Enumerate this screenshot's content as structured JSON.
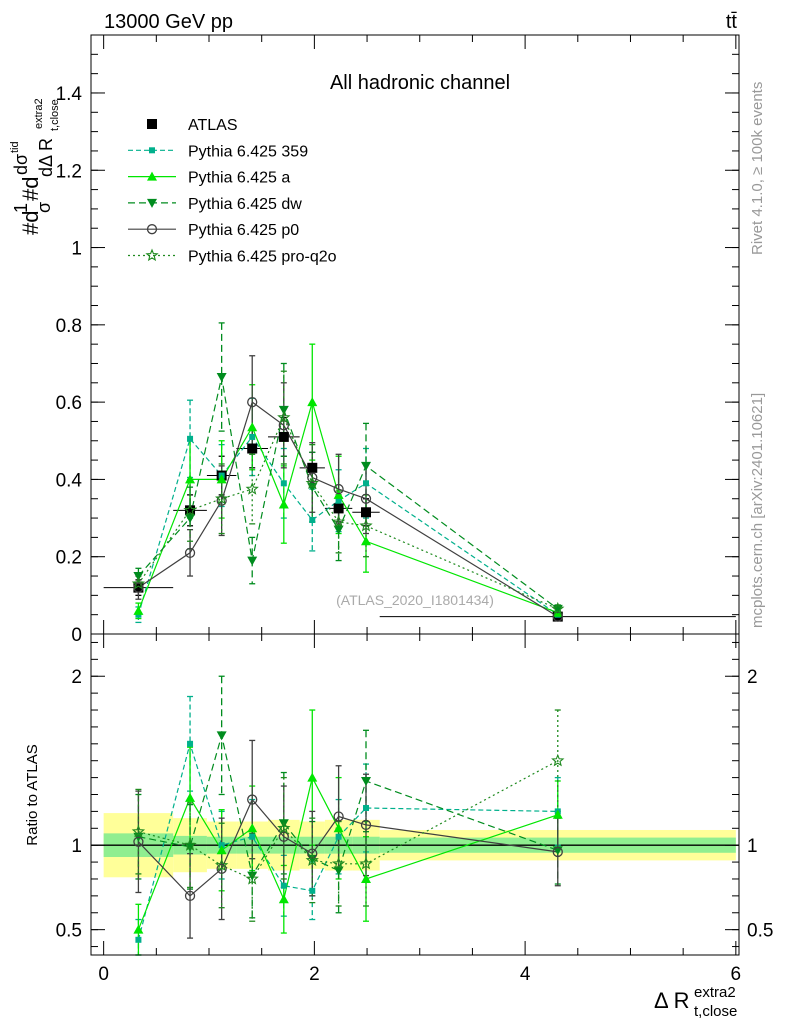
{
  "header": {
    "energy_label": "13000 GeV pp",
    "process_label": "tt̄",
    "side_label_top": "Rivet 4.1.0, ≥ 100k events",
    "side_label_bottom": "mcplots.cern.ch [arXiv:2401.10621]",
    "watermark": "(ATLAS_2020_I1801434)"
  },
  "chart_data": [
    {
      "type": "line",
      "title": "All hadronic channel",
      "ylabel": "#d1/σ#d dσ^{tid}/dΔ R_{t,close}^{extra2}",
      "ylabel_parts": {
        "frac": "#d",
        "one": "1",
        "sigma": "σ",
        "d2": "#d",
        "dsig": "dσ",
        "tid": "tid",
        "dDelta": "dΔ R",
        "sub": "t,close",
        "sup": "extra2"
      },
      "xlim": [
        -0.12,
        6.03
      ],
      "ylim": [
        0,
        1.55
      ],
      "yticks": [
        0,
        0.2,
        0.4,
        0.6,
        0.8,
        1,
        1.2,
        1.4
      ],
      "ytick_labels": [
        "0",
        "0.2",
        "0.4",
        "0.6",
        "0.8",
        "1",
        "1.2",
        "1.4"
      ],
      "legend_position": "top-left",
      "series": [
        {
          "name": "ATLAS",
          "color": "#000000",
          "marker": "square",
          "dash": "none",
          "line": false,
          "x": [
            0.33,
            0.82,
            1.12,
            1.41,
            1.71,
            1.98,
            2.23,
            2.49,
            4.31
          ],
          "xerr": [
            0.33,
            0.16,
            0.14,
            0.15,
            0.15,
            0.12,
            0.13,
            0.13,
            1.69
          ],
          "y": [
            0.12,
            0.32,
            0.41,
            0.48,
            0.51,
            0.43,
            0.325,
            0.315,
            0.045
          ],
          "yerr": [
            0.02,
            0.04,
            0.05,
            0.05,
            0.05,
            0.04,
            0.035,
            0.035,
            0.006
          ]
        },
        {
          "name": "Pythia 6.425 359",
          "color": "#00b08c",
          "marker": "square-small",
          "dash": "5,3",
          "line": true,
          "x": [
            0.33,
            0.82,
            1.12,
            1.41,
            1.71,
            1.98,
            2.23,
            2.49,
            4.31
          ],
          "y": [
            0.05,
            0.505,
            0.41,
            0.51,
            0.39,
            0.295,
            0.345,
            0.39,
            0.05
          ],
          "yerr": [
            0.02,
            0.1,
            0.08,
            0.1,
            0.09,
            0.08,
            0.08,
            0.09,
            0.01
          ]
        },
        {
          "name": "Pythia 6.425 a",
          "color": "#00e600",
          "marker": "triangle-up",
          "dash": "none",
          "line": true,
          "x": [
            0.33,
            0.82,
            1.12,
            1.41,
            1.71,
            1.98,
            2.23,
            2.49,
            4.31
          ],
          "y": [
            0.06,
            0.4,
            0.4,
            0.535,
            0.335,
            0.6,
            0.36,
            0.24,
            0.055
          ],
          "yerr": [
            0.02,
            0.1,
            0.1,
            0.11,
            0.1,
            0.15,
            0.1,
            0.08,
            0.01
          ]
        },
        {
          "name": "Pythia 6.425 dw",
          "color": "#008c1e",
          "marker": "triangle-down",
          "dash": "7,4",
          "line": true,
          "x": [
            0.33,
            0.82,
            1.12,
            1.41,
            1.71,
            1.98,
            2.23,
            2.49,
            4.31
          ],
          "y": [
            0.15,
            0.3,
            0.665,
            0.19,
            0.58,
            0.38,
            0.27,
            0.435,
            0.065
          ],
          "yerr": [
            0.02,
            0.08,
            0.14,
            0.06,
            0.12,
            0.09,
            0.08,
            0.11,
            0.01
          ]
        },
        {
          "name": "Pythia 6.425 p0",
          "color": "#404040",
          "marker": "circle-open",
          "dash": "none",
          "line": true,
          "x": [
            0.33,
            0.82,
            1.12,
            1.41,
            1.71,
            1.98,
            2.23,
            2.49,
            4.31
          ],
          "y": [
            0.12,
            0.21,
            0.345,
            0.6,
            0.54,
            0.405,
            0.375,
            0.35,
            0.045
          ],
          "yerr": [
            0.03,
            0.06,
            0.09,
            0.12,
            0.11,
            0.09,
            0.09,
            0.09,
            0.01
          ]
        },
        {
          "name": "Pythia 6.425 pro-q2o",
          "color": "#1f8a1f",
          "marker": "star-open",
          "dash": "2,3",
          "line": true,
          "x": [
            0.33,
            0.82,
            1.12,
            1.41,
            1.71,
            1.98,
            2.23,
            2.49,
            4.31
          ],
          "y": [
            0.13,
            0.32,
            0.35,
            0.375,
            0.56,
            0.39,
            0.29,
            0.28,
            0.065
          ],
          "yerr": [
            0.02,
            0.08,
            0.09,
            0.09,
            0.12,
            0.1,
            0.08,
            0.08,
            0.01
          ]
        }
      ]
    },
    {
      "type": "line",
      "title": "",
      "xlabel": "Δ R_{t,close}^{extra2}",
      "xlabel_parts": {
        "main": "Δ R",
        "sup": "extra2",
        "sub": "t,close"
      },
      "ylabel": "Ratio to ATLAS",
      "xlim": [
        -0.12,
        6.03
      ],
      "ylim": [
        0.35,
        2.25
      ],
      "xticks": [
        0,
        2,
        4,
        6
      ],
      "xtick_labels": [
        "0",
        "2",
        "4",
        "6"
      ],
      "yticks": [
        0.5,
        1,
        2
      ],
      "ytick_labels": [
        "0.5",
        "1",
        "2"
      ],
      "bands": {
        "x_edges": [
          0,
          0.66,
          0.98,
          1.26,
          1.56,
          1.86,
          2.1,
          2.36,
          2.62,
          6.0
        ],
        "inner_half": [
          0.07,
          0.055,
          0.05,
          0.05,
          0.05,
          0.05,
          0.05,
          0.05,
          0.045
        ],
        "outer_half": [
          0.19,
          0.16,
          0.14,
          0.14,
          0.15,
          0.14,
          0.15,
          0.15,
          0.09
        ],
        "inner_color": "#90ee90",
        "outer_color": "#ffff99"
      },
      "series": [
        {
          "name": "Pythia 6.425 359",
          "x": [
            0.33,
            0.82,
            1.12,
            1.41,
            1.71,
            1.98,
            2.23,
            2.49,
            4.31
          ],
          "y": [
            0.44,
            1.6,
            1.0,
            1.05,
            0.76,
            0.73,
            1.05,
            1.22,
            1.2
          ],
          "yerr": [
            0.12,
            0.28,
            0.2,
            0.22,
            0.18,
            0.17,
            0.22,
            0.26,
            0.2
          ]
        },
        {
          "name": "Pythia 6.425 a",
          "x": [
            0.33,
            0.82,
            1.12,
            1.41,
            1.71,
            1.98,
            2.23,
            2.49,
            4.31
          ],
          "y": [
            0.5,
            1.28,
            0.97,
            1.1,
            0.68,
            1.4,
            1.1,
            0.8,
            1.18
          ],
          "yerr": [
            0.15,
            0.3,
            0.24,
            0.25,
            0.2,
            0.4,
            0.3,
            0.25,
            0.2
          ]
        },
        {
          "name": "Pythia 6.425 dw",
          "x": [
            0.33,
            0.82,
            1.12,
            1.41,
            1.71,
            1.98,
            2.23,
            2.49,
            4.31
          ],
          "y": [
            1.05,
            0.99,
            1.65,
            0.82,
            1.13,
            0.92,
            0.85,
            1.38,
            0.97
          ],
          "yerr": [
            0.25,
            0.25,
            0.35,
            0.25,
            0.3,
            0.22,
            0.25,
            0.3,
            0.2
          ]
        },
        {
          "name": "Pythia 6.425 p0",
          "x": [
            0.33,
            0.82,
            1.12,
            1.41,
            1.71,
            1.98,
            2.23,
            2.49,
            4.31
          ],
          "y": [
            1.02,
            0.7,
            0.86,
            1.27,
            1.05,
            0.95,
            1.17,
            1.12,
            0.96
          ],
          "yerr": [
            0.3,
            0.25,
            0.3,
            0.35,
            0.3,
            0.25,
            0.3,
            0.3,
            0.2
          ]
        },
        {
          "name": "Pythia 6.425 pro-q2o",
          "x": [
            0.33,
            0.82,
            1.12,
            1.41,
            1.71,
            1.98,
            2.23,
            2.49,
            4.31
          ],
          "y": [
            1.08,
            1.0,
            0.88,
            0.8,
            1.1,
            0.91,
            0.89,
            0.89,
            1.5
          ],
          "yerr": [
            0.25,
            0.25,
            0.25,
            0.25,
            0.3,
            0.25,
            0.25,
            0.25,
            0.3
          ]
        }
      ]
    }
  ]
}
